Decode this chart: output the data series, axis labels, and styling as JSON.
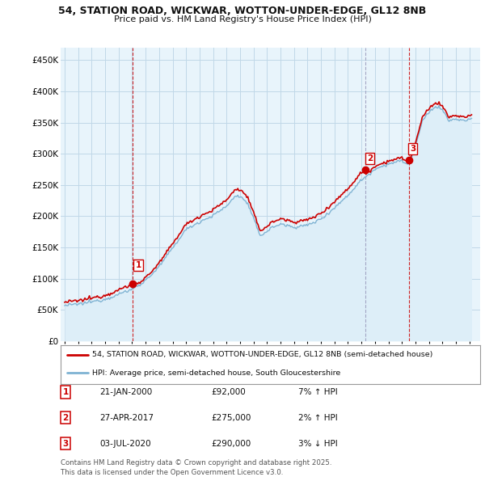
{
  "title_line1": "54, STATION ROAD, WICKWAR, WOTTON-UNDER-EDGE, GL12 8NB",
  "title_line2": "Price paid vs. HM Land Registry's House Price Index (HPI)",
  "legend_line1": "54, STATION ROAD, WICKWAR, WOTTON-UNDER-EDGE, GL12 8NB (semi-detached house)",
  "legend_line2": "HPI: Average price, semi-detached house, South Gloucestershire",
  "sale_color": "#cc0000",
  "hpi_color": "#7fb3d3",
  "hpi_fill_color": "#ddeef8",
  "background_color": "#ffffff",
  "chart_bg_color": "#e8f4fb",
  "grid_color": "#c0d8e8",
  "ylim": [
    0,
    470000
  ],
  "yticks": [
    0,
    50000,
    100000,
    150000,
    200000,
    250000,
    300000,
    350000,
    400000,
    450000
  ],
  "sales": [
    {
      "date_num": 2000.06,
      "price": 92000,
      "label": "1",
      "vline_color": "#dd0000",
      "vline_style": "--"
    },
    {
      "date_num": 2017.32,
      "price": 275000,
      "label": "2",
      "vline_color": "#aaaacc",
      "vline_style": "--"
    },
    {
      "date_num": 2020.5,
      "price": 290000,
      "label": "3",
      "vline_color": "#dd0000",
      "vline_style": "--"
    }
  ],
  "table_rows": [
    {
      "num": "1",
      "date": "21-JAN-2000",
      "price": "£92,000",
      "change": "7% ↑ HPI"
    },
    {
      "num": "2",
      "date": "27-APR-2017",
      "price": "£275,000",
      "change": "2% ↑ HPI"
    },
    {
      "num": "3",
      "date": "03-JUL-2020",
      "price": "£290,000",
      "change": "3% ↓ HPI"
    }
  ],
  "footnote": "Contains HM Land Registry data © Crown copyright and database right 2025.\nThis data is licensed under the Open Government Licence v3.0.",
  "hpi_data": {
    "times": [
      1995.0,
      1995.083,
      1995.167,
      1995.25,
      1995.333,
      1995.417,
      1995.5,
      1995.583,
      1995.667,
      1995.75,
      1995.833,
      1995.917,
      1996.0,
      1996.083,
      1996.167,
      1996.25,
      1996.333,
      1996.417,
      1996.5,
      1996.583,
      1996.667,
      1996.75,
      1996.833,
      1996.917,
      1997.0,
      1997.083,
      1997.167,
      1997.25,
      1997.333,
      1997.417,
      1997.5,
      1997.583,
      1997.667,
      1997.75,
      1997.833,
      1997.917,
      1998.0,
      1998.083,
      1998.167,
      1998.25,
      1998.333,
      1998.417,
      1998.5,
      1998.583,
      1998.667,
      1998.75,
      1998.833,
      1998.917,
      1999.0,
      1999.083,
      1999.167,
      1999.25,
      1999.333,
      1999.417,
      1999.5,
      1999.583,
      1999.667,
      1999.75,
      1999.833,
      1999.917,
      2000.0,
      2000.083,
      2000.167,
      2000.25,
      2000.333,
      2000.417,
      2000.5,
      2000.583,
      2000.667,
      2000.75,
      2000.833,
      2000.917,
      2001.0,
      2001.083,
      2001.167,
      2001.25,
      2001.333,
      2001.417,
      2001.5,
      2001.583,
      2001.667,
      2001.75,
      2001.833,
      2001.917,
      2002.0,
      2002.083,
      2002.167,
      2002.25,
      2002.333,
      2002.417,
      2002.5,
      2002.583,
      2002.667,
      2002.75,
      2002.833,
      2002.917,
      2003.0,
      2003.083,
      2003.167,
      2003.25,
      2003.333,
      2003.417,
      2003.5,
      2003.583,
      2003.667,
      2003.75,
      2003.833,
      2003.917,
      2004.0,
      2004.083,
      2004.167,
      2004.25,
      2004.333,
      2004.417,
      2004.5,
      2004.583,
      2004.667,
      2004.75,
      2004.833,
      2004.917,
      2005.0,
      2005.083,
      2005.167,
      2005.25,
      2005.333,
      2005.417,
      2005.5,
      2005.583,
      2005.667,
      2005.75,
      2005.833,
      2005.917,
      2006.0,
      2006.083,
      2006.167,
      2006.25,
      2006.333,
      2006.417,
      2006.5,
      2006.583,
      2006.667,
      2006.75,
      2006.833,
      2006.917,
      2007.0,
      2007.083,
      2007.167,
      2007.25,
      2007.333,
      2007.417,
      2007.5,
      2007.583,
      2007.667,
      2007.75,
      2007.833,
      2007.917,
      2008.0,
      2008.083,
      2008.167,
      2008.25,
      2008.333,
      2008.417,
      2008.5,
      2008.583,
      2008.667,
      2008.75,
      2008.833,
      2008.917,
      2009.0,
      2009.083,
      2009.167,
      2009.25,
      2009.333,
      2009.417,
      2009.5,
      2009.583,
      2009.667,
      2009.75,
      2009.833,
      2009.917,
      2010.0,
      2010.083,
      2010.167,
      2010.25,
      2010.333,
      2010.417,
      2010.5,
      2010.583,
      2010.667,
      2010.75,
      2010.833,
      2010.917,
      2011.0,
      2011.083,
      2011.167,
      2011.25,
      2011.333,
      2011.417,
      2011.5,
      2011.583,
      2011.667,
      2011.75,
      2011.833,
      2011.917,
      2012.0,
      2012.083,
      2012.167,
      2012.25,
      2012.333,
      2012.417,
      2012.5,
      2012.583,
      2012.667,
      2012.75,
      2012.833,
      2012.917,
      2013.0,
      2013.083,
      2013.167,
      2013.25,
      2013.333,
      2013.417,
      2013.5,
      2013.583,
      2013.667,
      2013.75,
      2013.833,
      2013.917,
      2014.0,
      2014.083,
      2014.167,
      2014.25,
      2014.333,
      2014.417,
      2014.5,
      2014.583,
      2014.667,
      2014.75,
      2014.833,
      2014.917,
      2015.0,
      2015.083,
      2015.167,
      2015.25,
      2015.333,
      2015.417,
      2015.5,
      2015.583,
      2015.667,
      2015.75,
      2015.833,
      2015.917,
      2016.0,
      2016.083,
      2016.167,
      2016.25,
      2016.333,
      2016.417,
      2016.5,
      2016.583,
      2016.667,
      2016.75,
      2016.833,
      2016.917,
      2017.0,
      2017.083,
      2017.167,
      2017.25,
      2017.333,
      2017.417,
      2017.5,
      2017.583,
      2017.667,
      2017.75,
      2017.833,
      2017.917,
      2018.0,
      2018.083,
      2018.167,
      2018.25,
      2018.333,
      2018.417,
      2018.5,
      2018.583,
      2018.667,
      2018.75,
      2018.833,
      2018.917,
      2019.0,
      2019.083,
      2019.167,
      2019.25,
      2019.333,
      2019.417,
      2019.5,
      2019.583,
      2019.667,
      2019.75,
      2019.833,
      2019.917,
      2020.0,
      2020.083,
      2020.167,
      2020.25,
      2020.333,
      2020.417,
      2020.5,
      2020.583,
      2020.667,
      2020.75,
      2020.833,
      2020.917,
      2021.0,
      2021.083,
      2021.167,
      2021.25,
      2021.333,
      2021.417,
      2021.5,
      2021.583,
      2021.667,
      2021.75,
      2021.833,
      2021.917,
      2022.0,
      2022.083,
      2022.167,
      2022.25,
      2022.333,
      2022.417,
      2022.5,
      2022.583,
      2022.667,
      2022.75,
      2022.833,
      2022.917,
      2023.0,
      2023.083,
      2023.167,
      2023.25,
      2023.333,
      2023.417,
      2023.5,
      2023.583,
      2023.667,
      2023.75,
      2023.833,
      2023.917,
      2024.0,
      2024.083,
      2024.167,
      2024.25,
      2024.333,
      2024.417,
      2024.5,
      2024.583,
      2024.667,
      2024.75,
      2024.833,
      2024.917,
      2025.0,
      2025.083,
      2025.167
    ]
  }
}
